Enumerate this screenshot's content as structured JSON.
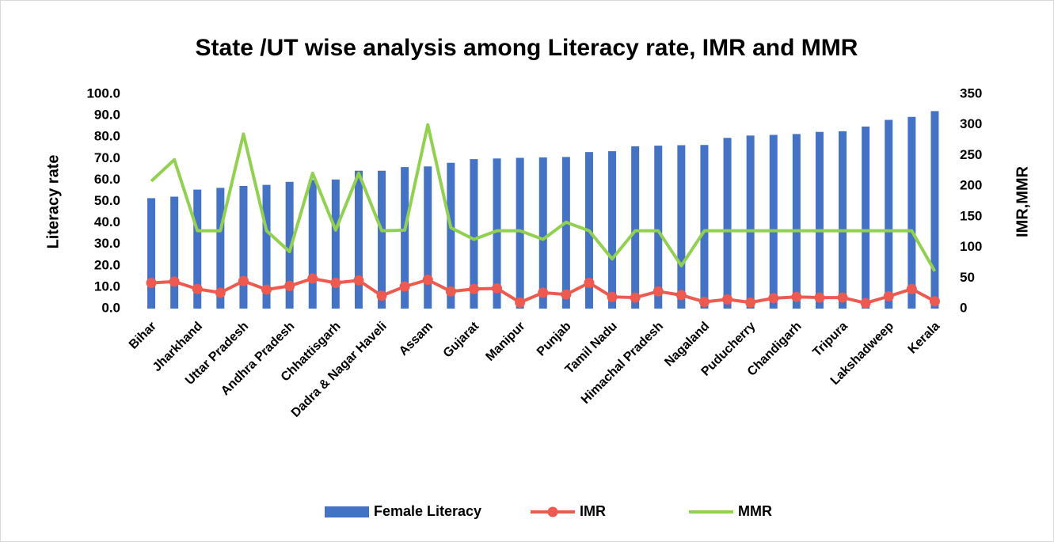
{
  "chart_data": {
    "type": "bar-line",
    "title": "State /UT wise analysis among Literacy rate, IMR and MMR",
    "y_label": "Literacy rate",
    "y2_label": "IMR,MMR",
    "categories": [
      "Bihar",
      null,
      "Jharkhand",
      null,
      "Uttar Pradesh",
      null,
      "Andhra Pradesh",
      null,
      "Chhattisgarh",
      null,
      "Dadra & Nagar  Haveli",
      null,
      "Assam",
      null,
      "Gujarat",
      null,
      "Manipur",
      null,
      "Punjab",
      null,
      "Tamil Nadu",
      null,
      "Himachal Pradesh",
      null,
      "Nagaland",
      null,
      "Puducherry",
      null,
      "Chandigarh",
      null,
      "Tripura",
      null,
      "Lakshadweep",
      null,
      "Kerala"
    ],
    "series": [
      {
        "name": "Female Literacy",
        "type": "bar",
        "color": "#4472c4",
        "values": [
          51.5,
          52.2,
          55.5,
          56.3,
          57.2,
          57.7,
          59.1,
          60.0,
          60.2,
          64.3,
          64.3,
          66.0,
          66.3,
          68.0,
          69.7,
          70.0,
          70.3,
          70.5,
          70.7,
          73.0,
          73.4,
          75.7,
          76.0,
          76.2,
          76.3,
          79.6,
          80.7,
          81.0,
          81.4,
          82.4,
          82.7,
          84.9,
          88.0,
          89.4,
          92.1
        ]
      },
      {
        "name": "IMR",
        "type": "line",
        "marker": true,
        "axis": "y2",
        "color": "#ee5a4f",
        "values": [
          42,
          44,
          32,
          26,
          45,
          31,
          37,
          49,
          42,
          46,
          21,
          36,
          47,
          28,
          32,
          33,
          10,
          26,
          23,
          42,
          19,
          18,
          28,
          22,
          11,
          15,
          10,
          17,
          19,
          18,
          18,
          9,
          20,
          32,
          12
        ]
      },
      {
        "name": "MMR",
        "type": "line",
        "marker": false,
        "axis": "y2",
        "color": "#92d050",
        "values": [
          208,
          243,
          127,
          127,
          285,
          127,
          93,
          221,
          128,
          221,
          127,
          128,
          300,
          132,
          113,
          127,
          127,
          113,
          141,
          127,
          81,
          127,
          127,
          70,
          127,
          127,
          127,
          127,
          127,
          127,
          127,
          127,
          127,
          127,
          61
        ]
      }
    ],
    "ylim": [
      0,
      100
    ],
    "yticks": [
      {
        "value": 0,
        "label": "0.0"
      },
      {
        "value": 10,
        "label": "10.0"
      },
      {
        "value": 20,
        "label": "20.0"
      },
      {
        "value": 30,
        "label": "30.0"
      },
      {
        "value": 40,
        "label": "40.0"
      },
      {
        "value": 50,
        "label": "50.0"
      },
      {
        "value": 60,
        "label": "60.0"
      },
      {
        "value": 70,
        "label": "70.0"
      },
      {
        "value": 80,
        "label": "80.0"
      },
      {
        "value": 90,
        "label": "90.0"
      },
      {
        "value": 100,
        "label": "100.0"
      }
    ],
    "y2lim": [
      0,
      350
    ],
    "y2ticks": [
      0,
      50,
      100,
      150,
      200,
      250,
      300,
      350
    ],
    "grid": false,
    "legend": "bottom"
  }
}
